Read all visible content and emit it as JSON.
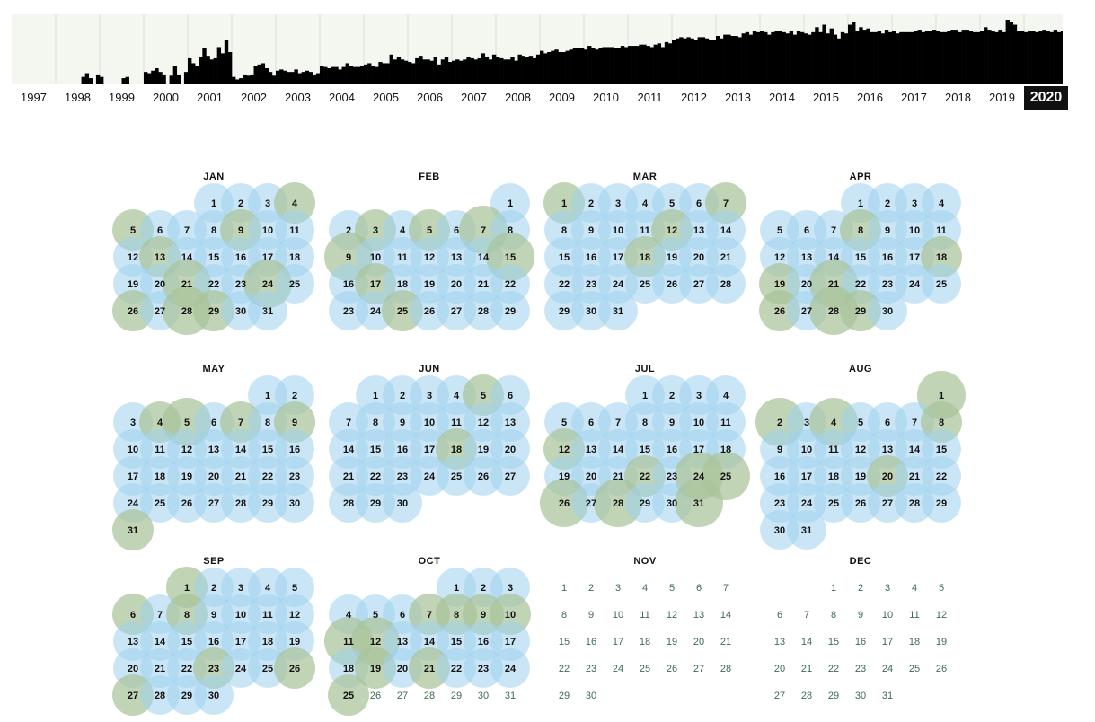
{
  "timeline": {
    "years": [
      "1997",
      "1998",
      "1999",
      "2000",
      "2001",
      "2002",
      "2003",
      "2004",
      "2005",
      "2006",
      "2007",
      "2008",
      "2009",
      "2010",
      "2011",
      "2012",
      "2013",
      "2014",
      "2015",
      "2016",
      "2017",
      "2018",
      "2019",
      "2020"
    ],
    "selected_year": "2020",
    "monthly_activity": [
      0,
      0,
      0,
      0,
      0,
      0,
      0,
      0,
      0,
      0,
      0,
      0,
      0,
      0,
      0,
      0,
      0,
      0,
      0,
      12,
      18,
      10,
      0,
      16,
      12,
      0,
      0,
      0,
      0,
      0,
      10,
      12,
      0,
      0,
      0,
      0,
      20,
      18,
      22,
      26,
      20,
      16,
      0,
      14,
      30,
      16,
      0,
      20,
      42,
      34,
      30,
      44,
      58,
      46,
      40,
      42,
      60,
      50,
      72,
      52,
      12,
      8,
      10,
      16,
      14,
      16,
      30,
      32,
      34,
      26,
      20,
      14,
      22,
      24,
      22,
      20,
      20,
      24,
      18,
      20,
      22,
      20,
      16,
      18,
      30,
      28,
      26,
      28,
      28,
      24,
      28,
      34,
      30,
      28,
      28,
      30,
      32,
      34,
      30,
      28,
      36,
      34,
      34,
      48,
      40,
      44,
      40,
      38,
      36,
      34,
      42,
      46,
      40,
      40,
      38,
      44,
      32,
      40,
      44,
      36,
      38,
      40,
      38,
      40,
      44,
      42,
      40,
      42,
      50,
      44,
      40,
      48,
      44,
      42,
      40,
      40,
      44,
      38,
      48,
      46,
      44,
      46,
      42,
      48,
      54,
      50,
      52,
      54,
      56,
      52,
      52,
      54,
      56,
      58,
      58,
      58,
      56,
      62,
      58,
      56,
      58,
      60,
      60,
      60,
      58,
      58,
      62,
      60,
      62,
      62,
      62,
      64,
      64,
      62,
      60,
      64,
      66,
      60,
      68,
      66,
      72,
      74,
      76,
      74,
      76,
      74,
      72,
      76,
      76,
      74,
      72,
      72,
      78,
      74,
      80,
      80,
      78,
      78,
      76,
      82,
      84,
      80,
      86,
      84,
      86,
      84,
      80,
      84,
      86,
      86,
      84,
      82,
      86,
      80,
      86,
      84,
      82,
      80,
      84,
      92,
      84,
      96,
      82,
      90,
      80,
      74,
      84,
      82,
      96,
      100,
      86,
      92,
      88,
      90,
      84,
      84,
      86,
      82,
      88,
      84,
      86,
      82,
      84,
      84,
      84,
      84,
      86,
      88,
      84,
      86,
      86,
      88,
      86,
      84,
      84,
      86,
      88,
      88,
      84,
      88,
      88,
      86,
      84,
      84,
      86,
      92,
      88,
      86,
      84,
      88,
      84,
      104,
      100,
      96,
      86,
      86,
      84,
      86,
      86,
      84,
      86,
      88,
      86,
      84,
      88,
      84,
      86,
      82
    ]
  },
  "calendar": {
    "months": [
      {
        "label": "JAN",
        "first_weekday": 3,
        "days": 31,
        "active_through": 31
      },
      {
        "label": "FEB",
        "first_weekday": 6,
        "days": 29,
        "active_through": 29
      },
      {
        "label": "MAR",
        "first_weekday": 0,
        "days": 31,
        "active_through": 31
      },
      {
        "label": "APR",
        "first_weekday": 3,
        "days": 30,
        "active_through": 30
      },
      {
        "label": "MAY",
        "first_weekday": 5,
        "days": 31,
        "active_through": 31
      },
      {
        "label": "JUN",
        "first_weekday": 1,
        "days": 30,
        "active_through": 30
      },
      {
        "label": "JUL",
        "first_weekday": 3,
        "days": 31,
        "active_through": 31
      },
      {
        "label": "AUG",
        "first_weekday": 6,
        "days": 31,
        "active_through": 31
      },
      {
        "label": "SEP",
        "first_weekday": 2,
        "days": 30,
        "active_through": 30
      },
      {
        "label": "OCT",
        "first_weekday": 4,
        "days": 31,
        "active_through": 25
      },
      {
        "label": "NOV",
        "first_weekday": 0,
        "days": 30,
        "active_through": 0
      },
      {
        "label": "DEC",
        "first_weekday": 2,
        "days": 31,
        "active_through": 0
      }
    ],
    "highlighted_days": {
      "JAN": [
        4,
        5,
        9,
        13,
        21,
        24,
        26,
        28,
        29
      ],
      "FEB": [
        3,
        5,
        7,
        9,
        15,
        17,
        25
      ],
      "MAR": [
        1,
        7,
        12,
        18
      ],
      "APR": [
        8,
        18,
        19,
        21,
        26,
        28,
        29
      ],
      "MAY": [
        4,
        5,
        7,
        9,
        31
      ],
      "JUN": [
        5,
        18
      ],
      "JUL": [
        12,
        22,
        24,
        25,
        26,
        28,
        31
      ],
      "AUG": [
        1,
        2,
        4,
        8,
        20
      ],
      "SEP": [
        1,
        6,
        8,
        23,
        26,
        27
      ],
      "OCT": [
        7,
        8,
        9,
        10,
        11,
        12,
        19,
        21,
        25
      ],
      "NOV": [],
      "DEC": []
    },
    "large_days": {
      "JAN": [
        21,
        24,
        28
      ],
      "FEB": [
        7,
        9,
        15
      ],
      "MAR": [],
      "APR": [
        21,
        28
      ],
      "MAY": [
        5
      ],
      "JUN": [],
      "JUL": [
        24,
        25,
        26,
        28,
        31
      ],
      "AUG": [
        1,
        2,
        4
      ],
      "SEP": [],
      "OCT": [
        11,
        12
      ],
      "NOV": [],
      "DEC": []
    },
    "colors": {
      "bubble_blue": "#9fd2ef",
      "bubble_green": "#a9c49a",
      "future_day": "#3d6b52"
    }
  }
}
